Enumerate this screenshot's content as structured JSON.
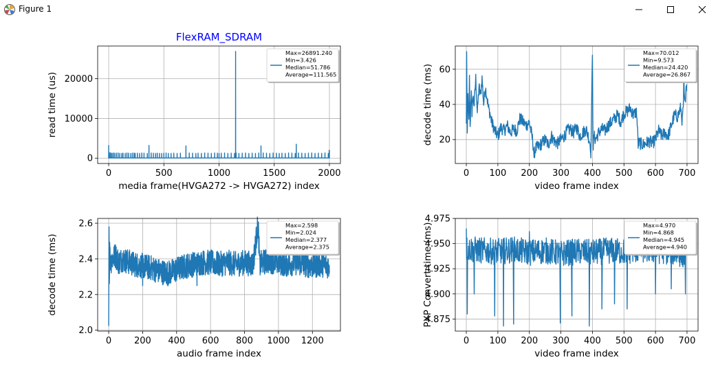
{
  "window": {
    "title": "Figure 1",
    "icon": "matplotlib-figure-icon",
    "minimize_icon": "minimize-icon",
    "maximize_icon": "maximize-icon",
    "close_icon": "close-icon"
  },
  "colors": {
    "line": "#1f77b4",
    "title": "#0000ff",
    "grid": "#b0b0b0"
  },
  "chart_data": [
    {
      "type": "line",
      "title": "FlexRAM_SDRAM",
      "xlabel": "media frame(HVGA272 -> HVGA272) index",
      "ylabel": "read time (us)",
      "xlim": [
        -100,
        2100
      ],
      "ylim": [
        -1344,
        28236
      ],
      "xticks": [
        0,
        500,
        1000,
        1500,
        2000
      ],
      "xtick_labels": [
        "0",
        "500",
        "1000",
        "1500",
        "2000"
      ],
      "yticks": [
        0,
        10000,
        20000
      ],
      "ytick_labels": [
        "0",
        "10000",
        "20000"
      ],
      "grid": true,
      "legend_position": "upper right",
      "legend": [
        "Max=26891.240",
        "Min=3.426",
        "Median=51.786",
        "Average=111.565"
      ],
      "series": [
        {
          "x": [
            0,
            2,
            12,
            14,
            25,
            30,
            42,
            55,
            70,
            85,
            100,
            118,
            130,
            150,
            165,
            180,
            200,
            215,
            230,
            240,
            260,
            280,
            300,
            320,
            350,
            365,
            385,
            405,
            425,
            440,
            460,
            480,
            500,
            520,
            540,
            565,
            590,
            620,
            650,
            700,
            730,
            760,
            790,
            810,
            840,
            870,
            900,
            930,
            960,
            985,
            1000,
            1020,
            1050,
            1080,
            1110,
            1140,
            1150,
            1155,
            1180,
            1210,
            1240,
            1270,
            1300,
            1330,
            1360,
            1380,
            1400,
            1430,
            1460,
            1490,
            1520,
            1545,
            1570,
            1600,
            1630,
            1660,
            1690,
            1700,
            1720,
            1750,
            1780,
            1810,
            1840,
            1870,
            1900,
            1930,
            1960,
            1990,
            1998
          ],
          "y": [
            3200,
            1350,
            1400,
            1300,
            1250,
            1200,
            1300,
            1250,
            1250,
            1300,
            1200,
            1200,
            1250,
            1200,
            1300,
            1250,
            1200,
            1250,
            1300,
            1200,
            1250,
            1200,
            1300,
            1250,
            1200,
            3200,
            1300,
            1250,
            1200,
            1250,
            1200,
            1200,
            1250,
            1300,
            1200,
            1200,
            1250,
            1200,
            1250,
            3100,
            1300,
            1250,
            1200,
            1250,
            1200,
            1300,
            1250,
            1200,
            1300,
            1250,
            1200,
            1250,
            1300,
            1200,
            1250,
            1200,
            26891,
            1300,
            1200,
            1250,
            1300,
            1200,
            1250,
            1200,
            1300,
            3100,
            1300,
            1250,
            1200,
            1300,
            1250,
            1200,
            1250,
            1200,
            1300,
            1250,
            1200,
            3500,
            1300,
            1250,
            1200,
            1250,
            1300,
            1200,
            1250,
            1200,
            1300,
            1200,
            2000
          ],
          "baseline": 50,
          "x_max": 2000
        }
      ]
    },
    {
      "type": "line",
      "title": "",
      "xlabel": "video frame index",
      "ylabel": "decode time (ms)",
      "xlim": [
        -35,
        735
      ],
      "ylim": [
        6.4,
        73.2
      ],
      "xticks": [
        0,
        100,
        200,
        300,
        400,
        500,
        600,
        700
      ],
      "xtick_labels": [
        "0",
        "100",
        "200",
        "300",
        "400",
        "500",
        "600",
        "700"
      ],
      "yticks": [
        20,
        40,
        60
      ],
      "ytick_labels": [
        "20",
        "40",
        "60"
      ],
      "grid": true,
      "legend_position": "upper right",
      "legend": [
        "Max=70.012",
        "Min=9.573",
        "Median=24.420",
        "Average=26.867"
      ],
      "series": [
        {
          "x": [
            0,
            1,
            3,
            5,
            8,
            10,
            12,
            14,
            16,
            18,
            20,
            25,
            30,
            35,
            40,
            45,
            50,
            55,
            60,
            65,
            70,
            75,
            80,
            85,
            90,
            100,
            110,
            120,
            130,
            140,
            150,
            160,
            170,
            180,
            190,
            200,
            210,
            215,
            220,
            230,
            240,
            250,
            260,
            270,
            280,
            290,
            300,
            310,
            320,
            330,
            340,
            350,
            360,
            370,
            380,
            390,
            395,
            400,
            402,
            405,
            410,
            420,
            430,
            440,
            450,
            460,
            470,
            480,
            490,
            500,
            510,
            520,
            530,
            540,
            545,
            550,
            560,
            570,
            580,
            590,
            600,
            610,
            620,
            630,
            640,
            650,
            660,
            670,
            680,
            685,
            690,
            695,
            699
          ],
          "y": [
            28,
            70,
            20,
            45,
            30,
            55,
            25,
            40,
            50,
            30,
            45,
            40,
            55,
            35,
            50,
            45,
            55,
            40,
            50,
            45,
            38,
            35,
            30,
            28,
            25,
            22,
            27,
            25,
            28,
            24,
            26,
            25,
            32,
            30,
            28,
            30,
            20,
            12,
            15,
            16,
            18,
            20,
            17,
            22,
            19,
            18,
            20,
            22,
            25,
            26,
            24,
            27,
            22,
            24,
            26,
            20,
            15,
            68,
            15,
            22,
            20,
            24,
            26,
            25,
            28,
            30,
            32,
            34,
            30,
            35,
            36,
            38,
            34,
            36,
            18,
            18,
            17,
            18,
            19,
            18,
            20,
            25,
            22,
            24,
            22,
            28,
            34,
            33,
            38,
            30,
            45,
            40,
            55
          ],
          "noise": 6
        }
      ]
    },
    {
      "type": "line",
      "title": "",
      "xlabel": "audio frame index",
      "ylabel": "decode time (ms)",
      "xlim": [
        -65,
        1365
      ],
      "ylim": [
        1.995,
        2.627
      ],
      "xticks": [
        0,
        200,
        400,
        600,
        800,
        1000,
        1200
      ],
      "xtick_labels": [
        "0",
        "200",
        "400",
        "600",
        "800",
        "1000",
        "1200"
      ],
      "yticks": [
        2.0,
        2.2,
        2.4,
        2.6
      ],
      "ytick_labels": [
        "2.0",
        "2.2",
        "2.4",
        "2.6"
      ],
      "grid": true,
      "legend_position": "upper right",
      "legend": [
        "Max=2.598",
        "Min=2.024",
        "Median=2.377",
        "Average=2.375"
      ],
      "series": [
        {
          "x": [
            0,
            2,
            4,
            6,
            10,
            20,
            40,
            60,
            80,
            100,
            150,
            200,
            250,
            300,
            350,
            400,
            450,
            500,
            550,
            600,
            650,
            700,
            750,
            800,
            850,
            880,
            890,
            900,
            950,
            1000,
            1050,
            1100,
            1150,
            1200,
            1250,
            1300
          ],
          "y": [
            2.024,
            2.58,
            2.3,
            2.45,
            2.38,
            2.4,
            2.42,
            2.38,
            2.4,
            2.39,
            2.37,
            2.36,
            2.35,
            2.33,
            2.32,
            2.34,
            2.36,
            2.37,
            2.38,
            2.38,
            2.37,
            2.38,
            2.37,
            2.38,
            2.37,
            2.598,
            2.36,
            2.38,
            2.39,
            2.38,
            2.37,
            2.38,
            2.37,
            2.36,
            2.37,
            2.36
          ],
          "noise": 0.12
        }
      ]
    },
    {
      "type": "line",
      "title": "",
      "xlabel": "video frame index",
      "ylabel": "PXP Convert time (ms)",
      "xlim": [
        -35,
        735
      ],
      "ylim": [
        4.863,
        4.975
      ],
      "xticks": [
        0,
        100,
        200,
        300,
        400,
        500,
        600,
        700
      ],
      "xtick_labels": [
        "0",
        "100",
        "200",
        "300",
        "400",
        "500",
        "600",
        "700"
      ],
      "yticks": [
        4.875,
        4.9,
        4.925,
        4.95,
        4.975
      ],
      "ytick_labels": [
        "4.875",
        "4.900",
        "4.925",
        "4.950",
        "4.975"
      ],
      "grid": true,
      "legend_position": "upper right",
      "legend": [
        "Max=4.970",
        "Min=4.868",
        "Median=4.945",
        "Average=4.940"
      ],
      "series": [
        {
          "x": [
            0,
            50,
            100,
            150,
            200,
            250,
            300,
            350,
            400,
            450,
            500,
            550,
            600,
            650,
            699
          ],
          "y": [
            4.945,
            4.943,
            4.942,
            4.944,
            4.941,
            4.943,
            4.94,
            4.942,
            4.941,
            4.943,
            4.942,
            4.944,
            4.943,
            4.942,
            4.938
          ],
          "noise": 0.022,
          "dips": [
            {
              "x": 3,
              "y": 4.88
            },
            {
              "x": 25,
              "y": 4.9
            },
            {
              "x": 90,
              "y": 4.878
            },
            {
              "x": 118,
              "y": 4.868
            },
            {
              "x": 150,
              "y": 4.87
            },
            {
              "x": 298,
              "y": 4.871
            },
            {
              "x": 335,
              "y": 4.878
            },
            {
              "x": 390,
              "y": 4.868
            },
            {
              "x": 430,
              "y": 4.885
            },
            {
              "x": 470,
              "y": 4.89
            },
            {
              "x": 510,
              "y": 4.885
            },
            {
              "x": 600,
              "y": 4.9
            },
            {
              "x": 650,
              "y": 4.905
            },
            {
              "x": 695,
              "y": 4.9
            }
          ],
          "peaks": [
            {
              "x": 0,
              "y": 4.965
            },
            {
              "x": 200,
              "y": 4.962
            },
            {
              "x": 520,
              "y": 4.97
            }
          ]
        }
      ]
    }
  ]
}
